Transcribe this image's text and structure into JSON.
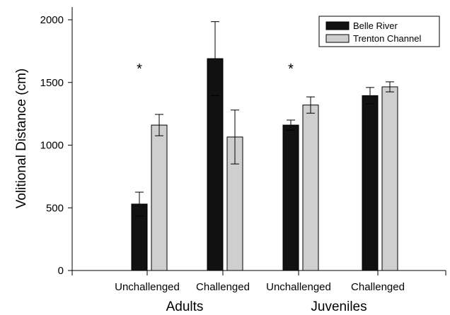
{
  "chart_data": {
    "type": "bar",
    "title": "",
    "xlabel": "",
    "ylabel": "Volitional Distance (cm)",
    "ylim": [
      0,
      2000
    ],
    "yticks": [
      0,
      500,
      1000,
      1500,
      2000
    ],
    "groups": [
      {
        "label": "Adults",
        "categories": [
          "Unchallenged",
          "Challenged"
        ]
      },
      {
        "label": "Juveniles",
        "categories": [
          "Unchallenged",
          "Challenged"
        ]
      }
    ],
    "categories": [
      "Unchallenged",
      "Challenged",
      "Unchallenged",
      "Challenged"
    ],
    "series": [
      {
        "name": "Belle River",
        "color": "#111111",
        "values": [
          530,
          1690,
          1160,
          1395
        ],
        "errors": [
          95,
          295,
          40,
          65
        ]
      },
      {
        "name": "Trenton Channel",
        "color": "#cfcfcf",
        "values": [
          1160,
          1065,
          1320,
          1465
        ],
        "errors": [
          85,
          215,
          65,
          40
        ]
      }
    ],
    "annotations": [
      {
        "text": "*",
        "category_index": 0
      },
      {
        "text": "*",
        "category_index": 2
      }
    ],
    "legend_position": "top-right",
    "grid": false
  }
}
